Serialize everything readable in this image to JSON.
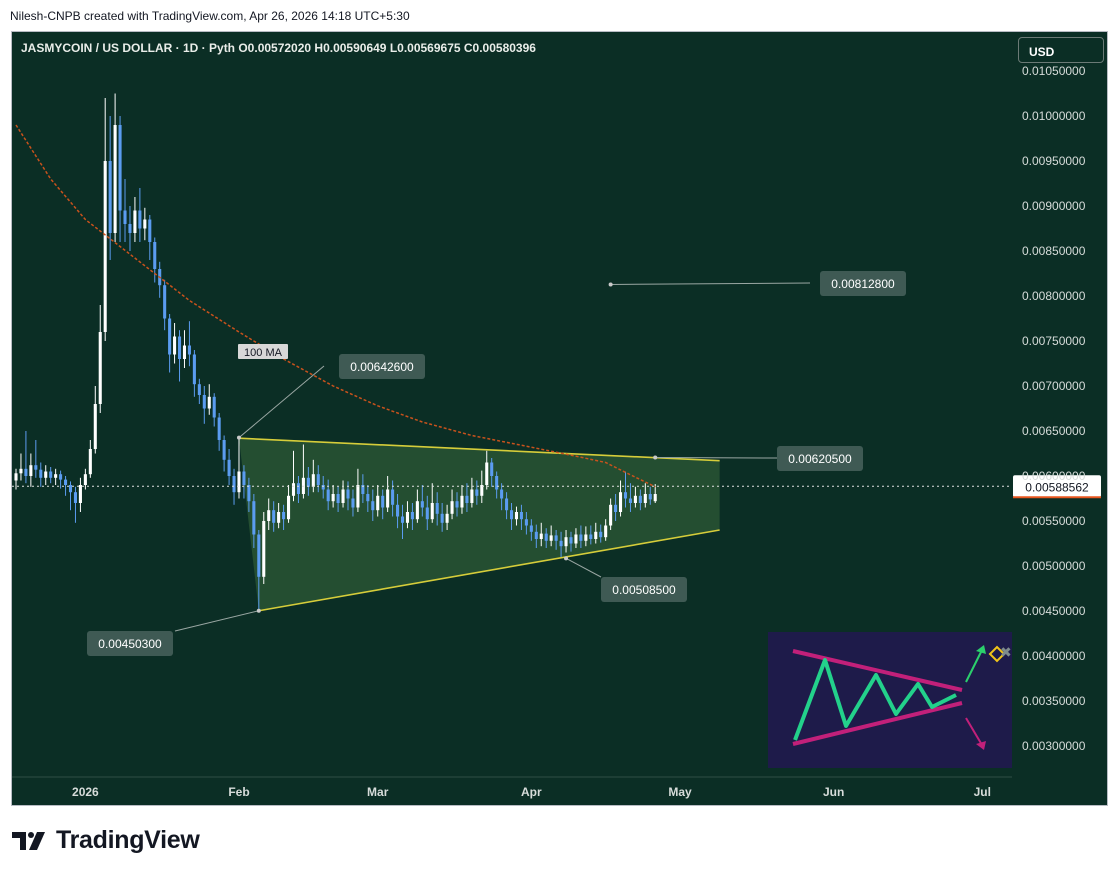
{
  "header": {
    "credit": "Nilesh-CNPB created with TradingView.com, Apr 26, 2026 14:18 UTC+5:30"
  },
  "symbol": {
    "name": "JASMYCOIN / US DOLLAR",
    "interval": "1D",
    "source": "Pyth",
    "ohlc_text": "O0.00572020  H0.00590649  L0.00569675  C0.00580396",
    "line_text": "JASMYCOIN / US DOLLAR · 1D · Pyth   O0.00572020  H0.00590649  L0.00569675  C0.00580396"
  },
  "currency_button": "USD",
  "brand": {
    "name": "TradingView"
  },
  "colors": {
    "background": "#0b2e25",
    "candle_up": "#ffffff",
    "candle_down": "#5b9cf0",
    "ma": "#c9521c",
    "trendline": "#d6cd3a",
    "triangle_fill": "#2d5a36",
    "label_bg": "#3f5a54",
    "price_badge_bg": "#ffffff",
    "price_badge_text": "#131722",
    "price_badge_line": "#e8561f",
    "inset_border": "#c2207a",
    "inset_zigzag": "#23d18b",
    "inset_up_arrow": "#2bd06c",
    "inset_down_arrow": "#c2207a"
  },
  "chart_data": {
    "type": "candlestick",
    "y_axis_ticks": [
      "0.01050000",
      "0.01000000",
      "0.00950000",
      "0.00900000",
      "0.00850000",
      "0.00800000",
      "0.00750000",
      "0.00700000",
      "0.00650000",
      "0.00600000",
      "0.00550000",
      "0.00500000",
      "0.00450000",
      "0.00400000",
      "0.00350000",
      "0.00300000"
    ],
    "ylim": [
      0.0027,
      0.01058
    ],
    "x_axis_labels": [
      {
        "label": "2026",
        "date": "2026-01-01"
      },
      {
        "label": "Feb",
        "date": "2026-02-01"
      },
      {
        "label": "Mar",
        "date": "2026-03-01"
      },
      {
        "label": "Apr",
        "date": "2026-04-01"
      },
      {
        "label": "May",
        "date": "2026-05-01"
      },
      {
        "label": "Jun",
        "date": "2026-06-01"
      },
      {
        "label": "Jul",
        "date": "2026-07-01"
      }
    ],
    "xlim": [
      "2025-12-18",
      "2026-07-07"
    ],
    "current_price": "0.00588562",
    "ma_label": "100 MA",
    "candles": [
      [
        "2025-12-18",
        0.00595,
        0.00603,
        0.00585,
        0.00608
      ],
      [
        "2025-12-19",
        0.00603,
        0.00608,
        0.00595,
        0.00625
      ],
      [
        "2025-12-20",
        0.00608,
        0.006,
        0.00592,
        0.0065
      ],
      [
        "2025-12-21",
        0.006,
        0.00612,
        0.00588,
        0.00625
      ],
      [
        "2025-12-22",
        0.00612,
        0.00607,
        0.00598,
        0.0064
      ],
      [
        "2025-12-23",
        0.00607,
        0.00598,
        0.00588,
        0.00615
      ],
      [
        "2025-12-24",
        0.00598,
        0.00605,
        0.0059,
        0.00612
      ],
      [
        "2025-12-25",
        0.00605,
        0.00598,
        0.00592,
        0.0061
      ],
      [
        "2025-12-26",
        0.00598,
        0.00602,
        0.0059,
        0.00608
      ],
      [
        "2025-12-27",
        0.00602,
        0.00596,
        0.00586,
        0.00606
      ],
      [
        "2025-12-28",
        0.00596,
        0.0059,
        0.00578,
        0.006
      ],
      [
        "2025-12-29",
        0.0059,
        0.00582,
        0.00562,
        0.00594
      ],
      [
        "2025-12-30",
        0.00582,
        0.0057,
        0.00548,
        0.00588
      ],
      [
        "2025-12-31",
        0.0057,
        0.0059,
        0.0056,
        0.00598
      ],
      [
        "2026-01-01",
        0.0059,
        0.00602,
        0.00585,
        0.00608
      ],
      [
        "2026-01-02",
        0.00602,
        0.0063,
        0.00598,
        0.0064
      ],
      [
        "2026-01-03",
        0.0063,
        0.0068,
        0.00625,
        0.007
      ],
      [
        "2026-01-04",
        0.0068,
        0.0076,
        0.0067,
        0.0079
      ],
      [
        "2026-01-05",
        0.0076,
        0.0095,
        0.0075,
        0.0102
      ],
      [
        "2026-01-06",
        0.0095,
        0.0087,
        0.0084,
        0.01
      ],
      [
        "2026-01-07",
        0.0087,
        0.0099,
        0.0086,
        0.01025
      ],
      [
        "2026-01-08",
        0.0099,
        0.00895,
        0.0086,
        0.01
      ],
      [
        "2026-01-09",
        0.00895,
        0.0088,
        0.0086,
        0.0093
      ],
      [
        "2026-01-10",
        0.0088,
        0.0087,
        0.0085,
        0.009
      ],
      [
        "2026-01-11",
        0.0087,
        0.00895,
        0.0086,
        0.0091
      ],
      [
        "2026-01-12",
        0.00895,
        0.00875,
        0.0086,
        0.0092
      ],
      [
        "2026-01-13",
        0.00875,
        0.00885,
        0.00862,
        0.00898
      ],
      [
        "2026-01-14",
        0.00885,
        0.0086,
        0.0084,
        0.0089
      ],
      [
        "2026-01-15",
        0.0086,
        0.0083,
        0.00815,
        0.00865
      ],
      [
        "2026-01-16",
        0.0083,
        0.00812,
        0.00798,
        0.00838
      ],
      [
        "2026-01-17",
        0.00812,
        0.00775,
        0.00762,
        0.00818
      ],
      [
        "2026-01-18",
        0.00775,
        0.00735,
        0.00715,
        0.0078
      ],
      [
        "2026-01-19",
        0.00735,
        0.00755,
        0.00725,
        0.0077
      ],
      [
        "2026-01-20",
        0.00755,
        0.0073,
        0.00705,
        0.00762
      ],
      [
        "2026-01-21",
        0.0073,
        0.00745,
        0.0072,
        0.00762
      ],
      [
        "2026-01-22",
        0.00745,
        0.00735,
        0.00722,
        0.00772
      ],
      [
        "2026-01-23",
        0.00735,
        0.00702,
        0.00688,
        0.0074
      ],
      [
        "2026-01-24",
        0.00702,
        0.0069,
        0.0068,
        0.00708
      ],
      [
        "2026-01-25",
        0.0069,
        0.00675,
        0.00658,
        0.007
      ],
      [
        "2026-01-26",
        0.00675,
        0.00688,
        0.00668,
        0.00702
      ],
      [
        "2026-01-27",
        0.00688,
        0.00665,
        0.00655,
        0.00692
      ],
      [
        "2026-01-28",
        0.00665,
        0.0064,
        0.00628,
        0.0067
      ],
      [
        "2026-01-29",
        0.0064,
        0.00618,
        0.00605,
        0.00645
      ],
      [
        "2026-01-30",
        0.00618,
        0.006,
        0.0059,
        0.0063
      ],
      [
        "2026-01-31",
        0.006,
        0.00582,
        0.00568,
        0.00608
      ],
      [
        "2026-02-01",
        0.00582,
        0.00605,
        0.00575,
        0.00642
      ],
      [
        "2026-02-02",
        0.00605,
        0.0059,
        0.00575,
        0.00612
      ],
      [
        "2026-02-03",
        0.0059,
        0.00572,
        0.0056,
        0.00598
      ],
      [
        "2026-02-04",
        0.00572,
        0.00535,
        0.0052,
        0.0058
      ],
      [
        "2026-02-05",
        0.00535,
        0.00488,
        0.0045,
        0.0054
      ],
      [
        "2026-02-06",
        0.00488,
        0.0055,
        0.0048,
        0.0056
      ],
      [
        "2026-02-07",
        0.0055,
        0.00562,
        0.0054,
        0.00575
      ],
      [
        "2026-02-08",
        0.00562,
        0.00548,
        0.00538,
        0.00572
      ],
      [
        "2026-02-09",
        0.00548,
        0.0056,
        0.00542,
        0.0057
      ],
      [
        "2026-02-10",
        0.0056,
        0.00552,
        0.0054,
        0.00568
      ],
      [
        "2026-02-11",
        0.00552,
        0.00578,
        0.00548,
        0.0059
      ],
      [
        "2026-02-12",
        0.00578,
        0.00592,
        0.00572,
        0.00628
      ],
      [
        "2026-02-13",
        0.00592,
        0.0058,
        0.0057,
        0.006
      ],
      [
        "2026-02-14",
        0.0058,
        0.00598,
        0.00575,
        0.00635
      ],
      [
        "2026-02-15",
        0.00598,
        0.00588,
        0.00578,
        0.0061
      ],
      [
        "2026-02-16",
        0.00588,
        0.00602,
        0.00582,
        0.00618
      ],
      [
        "2026-02-17",
        0.00602,
        0.0059,
        0.00582,
        0.00612
      ],
      [
        "2026-02-18",
        0.0059,
        0.00585,
        0.00575,
        0.006
      ],
      [
        "2026-02-19",
        0.00585,
        0.00572,
        0.00562,
        0.00596
      ],
      [
        "2026-02-20",
        0.00572,
        0.0058,
        0.00565,
        0.0059
      ],
      [
        "2026-02-21",
        0.0058,
        0.0057,
        0.0056,
        0.00588
      ],
      [
        "2026-02-22",
        0.0057,
        0.00585,
        0.00565,
        0.00595
      ],
      [
        "2026-02-23",
        0.00585,
        0.00575,
        0.00562,
        0.00594
      ],
      [
        "2026-02-24",
        0.00575,
        0.00565,
        0.00555,
        0.00585
      ],
      [
        "2026-02-25",
        0.00565,
        0.0059,
        0.0056,
        0.00608
      ],
      [
        "2026-02-26",
        0.0059,
        0.0058,
        0.0057,
        0.00602
      ],
      [
        "2026-02-27",
        0.0058,
        0.00572,
        0.0056,
        0.0059
      ],
      [
        "2026-02-28",
        0.00572,
        0.00562,
        0.0055,
        0.00585
      ],
      [
        "2026-03-01",
        0.00562,
        0.00578,
        0.00555,
        0.0059
      ],
      [
        "2026-03-02",
        0.00578,
        0.00565,
        0.00552,
        0.00585
      ],
      [
        "2026-03-03",
        0.00565,
        0.00585,
        0.0056,
        0.006
      ],
      [
        "2026-03-04",
        0.00585,
        0.00568,
        0.00555,
        0.00595
      ],
      [
        "2026-03-05",
        0.00568,
        0.00555,
        0.00542,
        0.0058
      ],
      [
        "2026-03-06",
        0.00555,
        0.00548,
        0.0053,
        0.00568
      ],
      [
        "2026-03-07",
        0.00548,
        0.0056,
        0.00542,
        0.00572
      ],
      [
        "2026-03-08",
        0.0056,
        0.00552,
        0.0054,
        0.0057
      ],
      [
        "2026-03-09",
        0.00552,
        0.00572,
        0.00548,
        0.00585
      ],
      [
        "2026-03-10",
        0.00572,
        0.00565,
        0.00555,
        0.0059
      ],
      [
        "2026-03-11",
        0.00565,
        0.00552,
        0.0054,
        0.00578
      ],
      [
        "2026-03-12",
        0.00552,
        0.0057,
        0.00548,
        0.00592
      ],
      [
        "2026-03-13",
        0.0057,
        0.00558,
        0.00545,
        0.00582
      ],
      [
        "2026-03-14",
        0.00558,
        0.00548,
        0.00538,
        0.0057
      ],
      [
        "2026-03-15",
        0.00548,
        0.00558,
        0.0054,
        0.00568
      ],
      [
        "2026-03-16",
        0.00558,
        0.00572,
        0.00552,
        0.00585
      ],
      [
        "2026-03-17",
        0.00572,
        0.00565,
        0.00555,
        0.00582
      ],
      [
        "2026-03-18",
        0.00565,
        0.00578,
        0.00558,
        0.0059
      ],
      [
        "2026-03-19",
        0.00578,
        0.0057,
        0.0056,
        0.00592
      ],
      [
        "2026-03-20",
        0.0057,
        0.00585,
        0.00565,
        0.00598
      ],
      [
        "2026-03-21",
        0.00585,
        0.00578,
        0.00568,
        0.00595
      ],
      [
        "2026-03-22",
        0.00578,
        0.0059,
        0.0057,
        0.00606
      ],
      [
        "2026-03-23",
        0.0059,
        0.00615,
        0.00585,
        0.00628
      ],
      [
        "2026-03-24",
        0.00615,
        0.006,
        0.00588,
        0.0062
      ],
      [
        "2026-03-25",
        0.006,
        0.00585,
        0.00575,
        0.00605
      ],
      [
        "2026-03-26",
        0.00585,
        0.00575,
        0.00562,
        0.00592
      ],
      [
        "2026-03-27",
        0.00575,
        0.00562,
        0.00552,
        0.00582
      ],
      [
        "2026-03-28",
        0.00562,
        0.00552,
        0.0054,
        0.0057
      ],
      [
        "2026-03-29",
        0.00552,
        0.0056,
        0.00545,
        0.00566
      ],
      [
        "2026-03-30",
        0.0056,
        0.00552,
        0.0054,
        0.00568
      ],
      [
        "2026-03-31",
        0.00552,
        0.00545,
        0.00535,
        0.0056
      ],
      [
        "2026-04-01",
        0.00545,
        0.00538,
        0.00528,
        0.00552
      ],
      [
        "2026-04-02",
        0.00538,
        0.0053,
        0.0052,
        0.00546
      ],
      [
        "2026-04-03",
        0.0053,
        0.00536,
        0.00522,
        0.00548
      ],
      [
        "2026-04-04",
        0.00536,
        0.00528,
        0.0052,
        0.00542
      ],
      [
        "2026-04-05",
        0.00528,
        0.00534,
        0.00522,
        0.00545
      ],
      [
        "2026-04-06",
        0.00534,
        0.00528,
        0.00518,
        0.0054
      ],
      [
        "2026-04-07",
        0.00528,
        0.00522,
        0.0051,
        0.00538
      ],
      [
        "2026-04-08",
        0.00522,
        0.00532,
        0.00515,
        0.0054
      ],
      [
        "2026-04-09",
        0.00532,
        0.00525,
        0.00516,
        0.00538
      ],
      [
        "2026-04-10",
        0.00525,
        0.00535,
        0.0052,
        0.00542
      ],
      [
        "2026-04-11",
        0.00535,
        0.00528,
        0.0052,
        0.00545
      ],
      [
        "2026-04-12",
        0.00528,
        0.00535,
        0.00522,
        0.00544
      ],
      [
        "2026-04-13",
        0.00535,
        0.0053,
        0.00524,
        0.00545
      ],
      [
        "2026-04-14",
        0.0053,
        0.00538,
        0.00525,
        0.00548
      ],
      [
        "2026-04-15",
        0.00538,
        0.00532,
        0.00526,
        0.00546
      ],
      [
        "2026-04-16",
        0.00532,
        0.00545,
        0.00528,
        0.00552
      ],
      [
        "2026-04-17",
        0.00545,
        0.00568,
        0.0054,
        0.00575
      ],
      [
        "2026-04-18",
        0.00568,
        0.0056,
        0.0055,
        0.0058
      ],
      [
        "2026-04-19",
        0.0056,
        0.00582,
        0.00555,
        0.00595
      ],
      [
        "2026-04-20",
        0.00582,
        0.00575,
        0.00565,
        0.00605
      ],
      [
        "2026-04-21",
        0.00575,
        0.0057,
        0.0056,
        0.00592
      ],
      [
        "2026-04-22",
        0.0057,
        0.00578,
        0.00565,
        0.00588
      ],
      [
        "2026-04-23",
        0.00578,
        0.0057,
        0.00562,
        0.00585
      ],
      [
        "2026-04-24",
        0.0057,
        0.0058,
        0.00565,
        0.00592
      ],
      [
        "2026-04-25",
        0.0058,
        0.00574,
        0.00568,
        0.00588
      ],
      [
        "2026-04-26",
        0.00572,
        0.0058,
        0.0057,
        0.00591
      ]
    ],
    "ma_100": [
      [
        "2025-12-18",
        0.0099
      ],
      [
        "2025-12-25",
        0.0093
      ],
      [
        "2026-01-01",
        0.00885
      ],
      [
        "2026-01-08",
        0.00855
      ],
      [
        "2026-01-15",
        0.00825
      ],
      [
        "2026-01-22",
        0.00795
      ],
      [
        "2026-02-01",
        0.0076
      ],
      [
        "2026-02-10",
        0.0073
      ],
      [
        "2026-02-20",
        0.007
      ],
      [
        "2026-03-01",
        0.00678
      ],
      [
        "2026-03-10",
        0.0066
      ],
      [
        "2026-03-20",
        0.00645
      ],
      [
        "2026-04-01",
        0.00632
      ],
      [
        "2026-04-10",
        0.00622
      ],
      [
        "2026-04-16",
        0.00615
      ],
      [
        "2026-04-20",
        0.00604
      ],
      [
        "2026-04-26",
        0.00588
      ]
    ],
    "trendlines": [
      {
        "name": "upper",
        "from": [
          "2026-02-01",
          0.00642
        ],
        "to": [
          "2026-05-09",
          0.00617
        ]
      },
      {
        "name": "lower",
        "from": [
          "2026-02-05",
          0.004503
        ],
        "to": [
          "2026-05-09",
          0.0054
        ]
      }
    ],
    "annotations": [
      {
        "text": "0.00642600",
        "point": [
          "2026-02-01",
          0.006426
        ]
      },
      {
        "text": "0.00450300",
        "point": [
          "2026-02-05",
          0.004503
        ]
      },
      {
        "text": "0.00508500",
        "point": [
          "2026-04-08",
          0.005085
        ]
      },
      {
        "text": "0.00620500",
        "point": [
          "2026-04-26",
          0.006205
        ]
      },
      {
        "text": "0.00812800",
        "point": [
          "2026-04-17",
          0.008128
        ]
      }
    ]
  }
}
